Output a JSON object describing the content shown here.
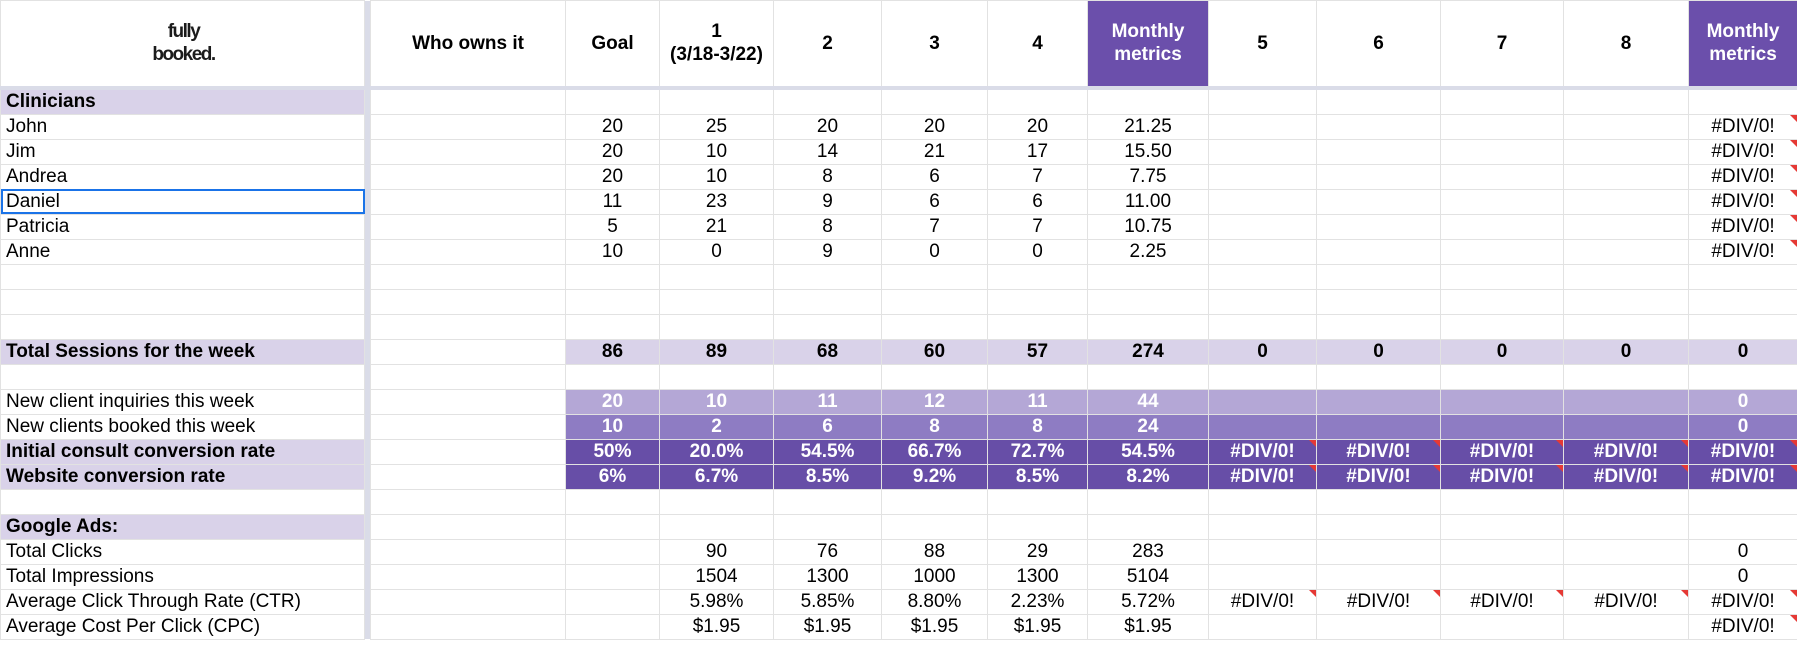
{
  "logo": {
    "line1": "fully",
    "line2": "booked."
  },
  "header": {
    "owner": "Who owns it",
    "goal": "Goal",
    "w1": "1",
    "w1_sub": "(3/18-3/22)",
    "w2": "2",
    "w3": "3",
    "w4": "4",
    "monthly1": "Monthly metrics",
    "w5": "5",
    "w6": "6",
    "w7": "7",
    "w8": "8",
    "monthly2": "Monthly metrics"
  },
  "sections": {
    "clinicians": "Clinicians",
    "google_ads": "Google Ads:"
  },
  "clinicians": [
    {
      "name": "John",
      "goal": "20",
      "w1": "25",
      "w2": "20",
      "w3": "20",
      "w4": "20",
      "m1": "21.25",
      "m2": "#DIV/0!"
    },
    {
      "name": "Jim",
      "goal": "20",
      "w1": "10",
      "w2": "14",
      "w3": "21",
      "w4": "17",
      "m1": "15.50",
      "m2": "#DIV/0!"
    },
    {
      "name": "Andrea",
      "goal": "20",
      "w1": "10",
      "w2": "8",
      "w3": "6",
      "w4": "7",
      "m1": "7.75",
      "m2": "#DIV/0!"
    },
    {
      "name": "Daniel",
      "goal": "11",
      "w1": "23",
      "w2": "9",
      "w3": "6",
      "w4": "6",
      "m1": "11.00",
      "m2": "#DIV/0!"
    },
    {
      "name": "Patricia",
      "goal": "5",
      "w1": "21",
      "w2": "8",
      "w3": "7",
      "w4": "7",
      "m1": "10.75",
      "m2": "#DIV/0!"
    },
    {
      "name": "Anne",
      "goal": "10",
      "w1": "0",
      "w2": "9",
      "w3": "0",
      "w4": "0",
      "m1": "2.25",
      "m2": "#DIV/0!"
    }
  ],
  "total": {
    "label": "Total Sessions for the week",
    "goal": "86",
    "w1": "89",
    "w2": "68",
    "w3": "60",
    "w4": "57",
    "m1": "274",
    "w5": "0",
    "w6": "0",
    "w7": "0",
    "w8": "0",
    "m2": "0"
  },
  "inquiries": {
    "label": "New client inquiries this week",
    "goal": "20",
    "w1": "10",
    "w2": "11",
    "w3": "12",
    "w4": "11",
    "m1": "44",
    "m2": "0"
  },
  "booked": {
    "label": "New clients booked this week",
    "goal": "10",
    "w1": "2",
    "w2": "6",
    "w3": "8",
    "w4": "8",
    "m1": "24",
    "m2": "0"
  },
  "consult": {
    "label": "Initial consult conversion rate",
    "goal": "50%",
    "w1": "20.0%",
    "w2": "54.5%",
    "w3": "66.7%",
    "w4": "72.7%",
    "m1": "54.5%",
    "w5": "#DIV/0!",
    "w6": "#DIV/0!",
    "w7": "#DIV/0!",
    "w8": "#DIV/0!",
    "m2": "#DIV/0!"
  },
  "website": {
    "label": "Website conversion rate",
    "goal": "6%",
    "w1": "6.7%",
    "w2": "8.5%",
    "w3": "9.2%",
    "w4": "8.5%",
    "m1": "8.2%",
    "w5": "#DIV/0!",
    "w6": "#DIV/0!",
    "w7": "#DIV/0!",
    "w8": "#DIV/0!",
    "m2": "#DIV/0!"
  },
  "ads": {
    "clicks": {
      "label": "Total Clicks",
      "w1": "90",
      "w2": "76",
      "w3": "88",
      "w4": "29",
      "m1": "283",
      "m2": "0"
    },
    "impressions": {
      "label": "Total Impressions",
      "w1": "1504",
      "w2": "1300",
      "w3": "1000",
      "w4": "1300",
      "m1": "5104",
      "m2": "0"
    },
    "ctr": {
      "label": "Average Click Through Rate (CTR)",
      "w1": "5.98%",
      "w2": "5.85%",
      "w3": "8.80%",
      "w4": "2.23%",
      "m1": "5.72%",
      "w5": "#DIV/0!",
      "w6": "#DIV/0!",
      "w7": "#DIV/0!",
      "w8": "#DIV/0!",
      "m2": "#DIV/0!"
    },
    "cpc": {
      "label": "Average Cost Per Click (CPC)",
      "w1": "$1.95",
      "w2": "$1.95",
      "w3": "$1.95",
      "w4": "$1.95",
      "m1": "$1.95",
      "m2": "#DIV/0!"
    }
  },
  "colors": {
    "header_purple": "#6b4fab",
    "light_lavender": "#d9d2e9",
    "mid_lavender": "#b4a7d6",
    "purple": "#8e7cc3",
    "dark_purple": "#674ea7",
    "error_flag": "#e53935",
    "selection": "#1a73e8"
  }
}
